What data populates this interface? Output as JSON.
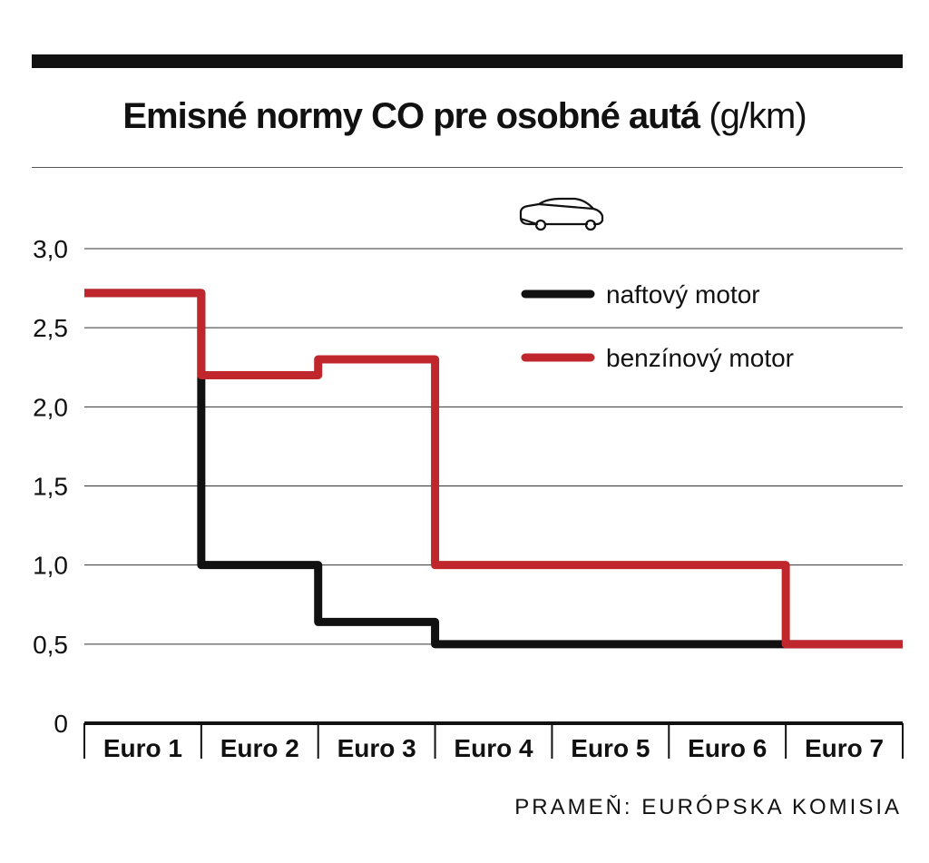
{
  "title": {
    "main": "Emisné normy CO pre osobné autá",
    "unit": "(g/km)"
  },
  "icons": {
    "legend_icon": "car-icon"
  },
  "chart_data": {
    "type": "line",
    "step": true,
    "categories": [
      "Euro 1",
      "Euro 2",
      "Euro 3",
      "Euro 4",
      "Euro 5",
      "Euro 6",
      "Euro 7"
    ],
    "y_ticks": [
      "0",
      "0,5",
      "1,0",
      "1,5",
      "2,0",
      "2,5",
      "3,0"
    ],
    "y_tick_values": [
      0,
      0.5,
      1.0,
      1.5,
      2.0,
      2.5,
      3.0
    ],
    "ylim": [
      0,
      3.0
    ],
    "grid": true,
    "legend_position": "top-right",
    "series": [
      {
        "name": "naftový motor",
        "color": "#111111",
        "values": [
          2.72,
          1.0,
          0.64,
          0.5,
          0.5,
          0.5,
          0.5
        ]
      },
      {
        "name": "benzínový motor",
        "color": "#c0272d",
        "values": [
          2.72,
          2.2,
          2.3,
          1.0,
          1.0,
          1.0,
          0.5
        ]
      }
    ]
  },
  "source": "PRAMEŇ: EURÓPSKA KOMISIA"
}
